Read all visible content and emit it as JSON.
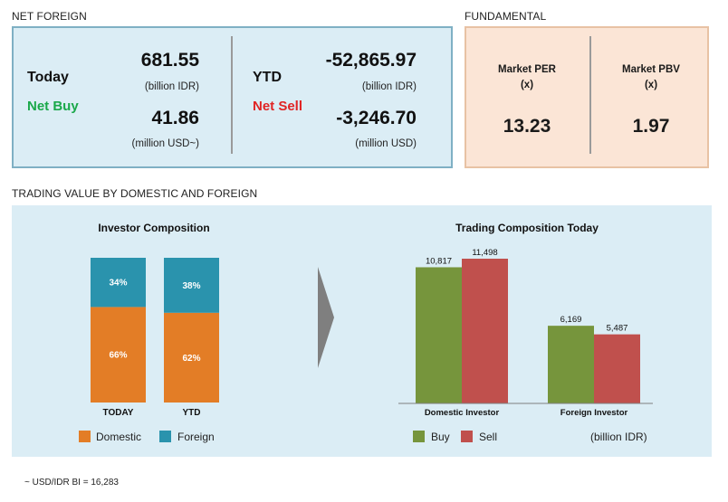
{
  "net_foreign": {
    "section_title": "NET FOREIGN",
    "today": {
      "label": "Today",
      "status": "Net Buy",
      "idr_value": "681.55",
      "idr_unit": "(billion IDR)",
      "usd_value": "41.86",
      "usd_unit": "(million USD~)"
    },
    "ytd": {
      "label": "YTD",
      "status": "Net Sell",
      "idr_value": "-52,865.97",
      "idr_unit": "(billion IDR)",
      "usd_value": "-3,246.70",
      "usd_unit": "(million USD)"
    }
  },
  "fundamental": {
    "section_title": "FUNDAMENTAL",
    "per": {
      "label": "Market PER",
      "unit": "(x)",
      "value": "13.23"
    },
    "pbv": {
      "label": "Market PBV",
      "unit": "(x)",
      "value": "1.97"
    }
  },
  "trading_value": {
    "section_title": "TRADING VALUE BY DOMESTIC AND FOREIGN"
  },
  "footnote": "~ USD/IDR BI = 16,283",
  "colors": {
    "domestic": "#e37d26",
    "foreign": "#2a93ad",
    "buy": "#76953c",
    "sell": "#c0504d",
    "net_buy": "#1aa84a",
    "net_sell": "#e02424"
  },
  "chart_data": [
    {
      "type": "bar",
      "stacked": true,
      "title": "Investor Composition",
      "categories": [
        "TODAY",
        "YTD"
      ],
      "series": [
        {
          "name": "Domestic",
          "values": [
            66,
            62
          ],
          "labels": [
            "66%",
            "62%"
          ],
          "color": "#e37d26"
        },
        {
          "name": "Foreign",
          "values": [
            34,
            38
          ],
          "labels": [
            "34%",
            "38%"
          ],
          "color": "#2a93ad"
        }
      ],
      "ylim": [
        0,
        100
      ],
      "legend": "bottom",
      "grid": false
    },
    {
      "type": "bar",
      "title": "Trading Composition Today",
      "categories": [
        "Domestic Investor",
        "Foreign Investor"
      ],
      "series": [
        {
          "name": "Buy",
          "values": [
            10817,
            6169
          ],
          "labels": [
            "10,817",
            "6,169"
          ],
          "color": "#76953c"
        },
        {
          "name": "Sell",
          "values": [
            11498,
            5487
          ],
          "labels": [
            "11,498",
            "5,487"
          ],
          "color": "#c0504d"
        }
      ],
      "unit_note": "(billion IDR)",
      "ylim": [
        0,
        11498
      ],
      "legend": "bottom",
      "grid": false
    }
  ]
}
